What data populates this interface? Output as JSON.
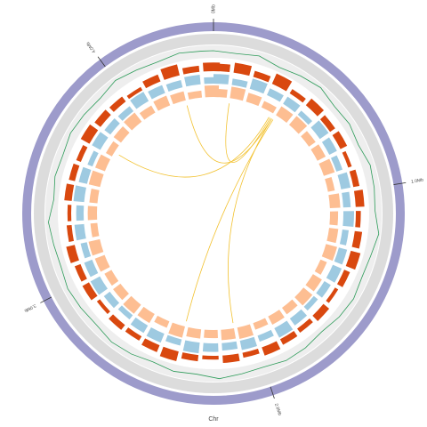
{
  "chart_data": {
    "type": "circos",
    "x_label": "Chr",
    "xlim": [
      0,
      4.45
    ],
    "xticks": [
      {
        "value": 0,
        "label": "0Mb"
      },
      {
        "value": 1,
        "label": "1.0Mb"
      },
      {
        "value": 2,
        "label": "2.0Mb"
      },
      {
        "value": 3,
        "label": "3.0Mb"
      },
      {
        "value": 4,
        "label": "4.0Mb"
      }
    ],
    "ylim": [
      0,
      1
    ],
    "x": [
      0,
      0.1,
      0.2,
      0.3,
      0.4,
      0.5,
      0.6,
      0.7,
      0.8,
      0.9,
      1,
      1.1,
      1.2,
      1.3,
      1.4,
      1.5,
      1.6,
      1.7,
      1.8,
      1.9,
      2,
      2.1,
      2.2,
      2.3,
      2.4,
      2.5,
      2.6,
      2.7,
      2.8,
      2.9,
      3,
      3.1,
      3.2,
      3.3,
      3.4,
      3.5,
      3.6,
      3.7,
      3.8,
      3.9,
      4,
      4.1,
      4.2,
      4.3,
      4.4
    ],
    "series": [
      {
        "type": "line",
        "color": "#2e9c5a",
        "values": [
          0.5,
          0.4,
          0.6,
          0.3,
          0.5,
          0.7,
          0.4,
          0.5,
          0.3,
          0.6,
          0.5,
          0.4,
          0.8,
          0.5,
          0.4,
          0.6,
          0.5,
          0.3,
          0.5,
          0.6,
          0.4,
          0.5,
          0.7,
          0.4,
          0.5,
          0.3,
          0.5,
          0.6,
          0.4,
          0.5,
          0.6,
          0.4,
          0.5,
          0.7,
          0.3,
          0.5,
          0.4,
          0.6,
          0.5,
          0.4,
          0.7,
          0.5,
          0.4,
          0.6,
          0.5
        ]
      },
      {
        "type": "bar",
        "color": "#d9480f",
        "values": [
          0.6,
          0.8,
          0.5,
          0.9,
          0.4,
          0.7,
          0.5,
          0.6,
          0.3,
          0.5,
          0.7,
          0.4,
          0.6,
          0.8,
          0.5,
          0.3,
          0.6,
          0.4,
          0.5,
          0.7,
          0.4,
          0.6,
          0.3,
          0.5,
          0.8,
          0.6,
          0.4,
          0.5,
          0.3,
          0.6,
          0.5,
          0.7,
          0.4,
          0.3,
          0.6,
          0.5,
          0.4,
          0.8,
          0.6,
          0.5,
          0.3,
          0.6,
          0.9,
          0.5,
          0.7
        ]
      },
      {
        "type": "bar",
        "color": "#9ecae1",
        "values": [
          0.9,
          0.6,
          1,
          0.7,
          0.8,
          0.5,
          1,
          0.8,
          0.6,
          0.9,
          0.7,
          1,
          0.6,
          0.8,
          0.9,
          0.7,
          0.5,
          0.8,
          1,
          0.6,
          0.9,
          0.7,
          0.8,
          1,
          0.6,
          0.9,
          0.8,
          0.5,
          0.7,
          1,
          0.8,
          0.6,
          0.9,
          0.7,
          1,
          0.8,
          0.5,
          0.9,
          0.7,
          0.6,
          1,
          0.8,
          0.7,
          0.9,
          0.6
        ]
      },
      {
        "type": "bar",
        "color": "#fdbe92",
        "values": [
          0.7,
          1,
          0.8,
          0.6,
          0.9,
          1,
          0.7,
          0.8,
          1,
          0.6,
          0.9,
          0.7,
          0.8,
          1,
          0.6,
          0.9,
          1,
          0.7,
          0.8,
          0.6,
          1,
          0.9,
          0.7,
          0.8,
          1,
          0.6,
          0.9,
          1,
          0.8,
          0.7,
          0.9,
          1,
          0.6,
          0.8,
          0.7,
          1,
          0.9,
          0.6,
          0.8,
          1,
          0.7,
          0.9,
          0.8,
          0.6,
          1
        ]
      }
    ],
    "link_color": "#f2c12e",
    "links": [
      {
        "source": 0.38,
        "target": 0.1
      },
      {
        "source": 0.39,
        "target": 4.28
      },
      {
        "source": 0.37,
        "target": 3.73
      },
      {
        "source": 0.4,
        "target": 2.4
      },
      {
        "source": 0.39,
        "target": 2.1
      }
    ]
  }
}
